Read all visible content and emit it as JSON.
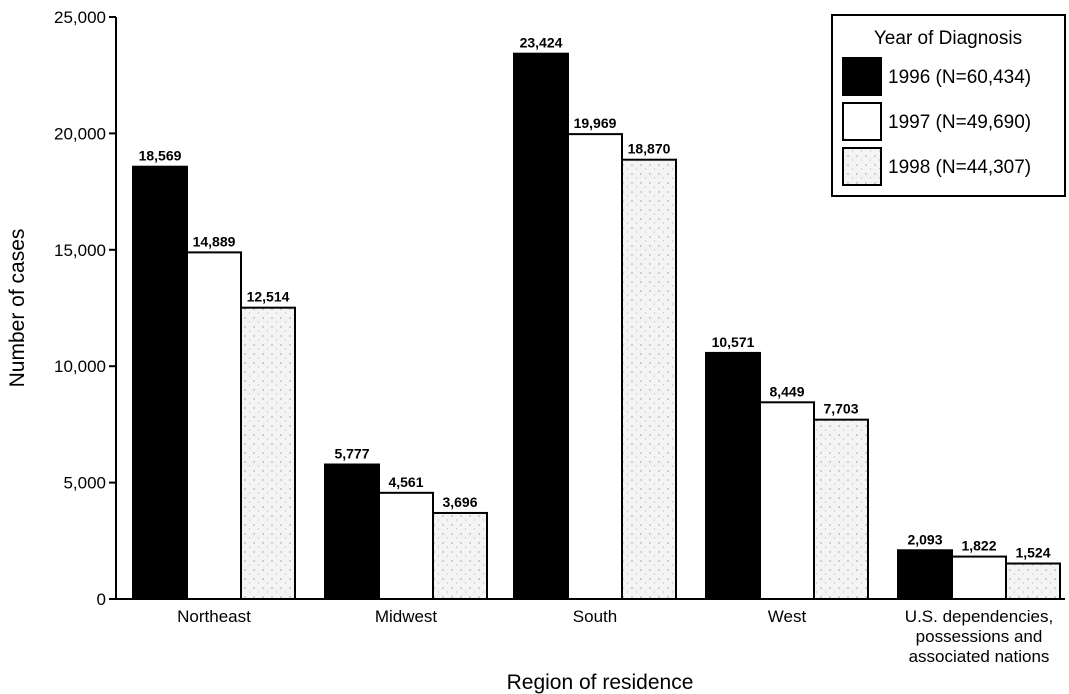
{
  "chart_data": {
    "type": "bar",
    "title": "",
    "xlabel": "Region of residence",
    "ylabel": "Number of cases",
    "ylim": [
      0,
      25000
    ],
    "yticks": [
      "0",
      "5,000",
      "10,000",
      "15,000",
      "20,000",
      "25,000"
    ],
    "ytick_values": [
      0,
      5000,
      10000,
      15000,
      20000,
      25000
    ],
    "grid": false,
    "legend_position": "top-right",
    "legend_title": "Year of Diagnosis",
    "categories": [
      [
        "Northeast"
      ],
      [
        "Midwest"
      ],
      [
        "South"
      ],
      [
        "West"
      ],
      [
        "U.S. dependencies,",
        "possessions and",
        "associated nations"
      ]
    ],
    "series": [
      {
        "name": "1996 (N=60,434)",
        "fill": "#000000",
        "values": [
          18569,
          5777,
          23424,
          10571,
          2093
        ],
        "labels": [
          "18,569",
          "5,777",
          "23,424",
          "10,571",
          "2,093"
        ]
      },
      {
        "name": "1997 (N=49,690)",
        "fill": "#ffffff",
        "values": [
          14889,
          4561,
          19969,
          8449,
          1822
        ],
        "labels": [
          "14,889",
          "4,561",
          "19,969",
          "8,449",
          "1,822"
        ]
      },
      {
        "name": "1998 (N=44,307)",
        "fill": "#f4f4f4",
        "values": [
          12514,
          3696,
          18870,
          7703,
          1524
        ],
        "labels": [
          "12,514",
          "3,696",
          "18,870",
          "7,703",
          "1,524"
        ]
      }
    ]
  }
}
